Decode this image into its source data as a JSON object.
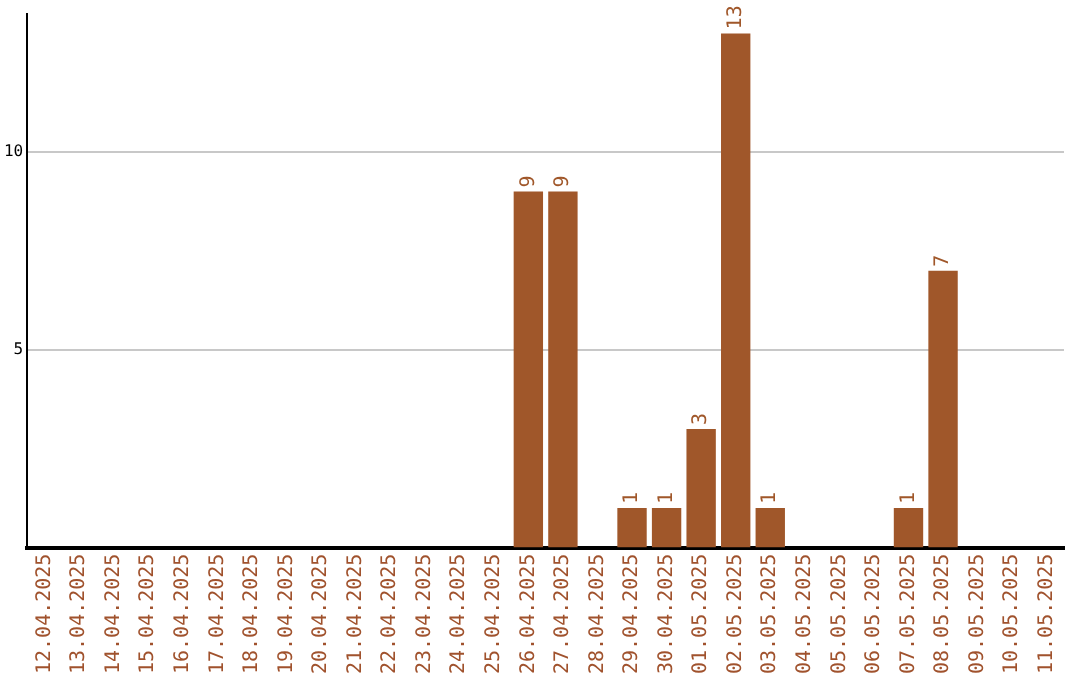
{
  "chart_data": {
    "type": "bar",
    "categories": [
      "12.04.2025",
      "13.04.2025",
      "14.04.2025",
      "15.04.2025",
      "16.04.2025",
      "17.04.2025",
      "18.04.2025",
      "19.04.2025",
      "20.04.2025",
      "21.04.2025",
      "22.04.2025",
      "23.04.2025",
      "24.04.2025",
      "25.04.2025",
      "26.04.2025",
      "27.04.2025",
      "28.04.2025",
      "29.04.2025",
      "30.04.2025",
      "01.05.2025",
      "02.05.2025",
      "03.05.2025",
      "04.05.2025",
      "05.05.2025",
      "06.05.2025",
      "07.05.2025",
      "08.05.2025",
      "09.05.2025",
      "10.05.2025",
      "11.05.2025"
    ],
    "values": [
      0,
      0,
      0,
      0,
      0,
      0,
      0,
      0,
      0,
      0,
      0,
      0,
      0,
      0,
      9,
      9,
      0,
      1,
      1,
      3,
      13,
      1,
      0,
      0,
      0,
      1,
      7,
      0,
      0,
      0
    ],
    "value_labels": [
      null,
      null,
      null,
      null,
      null,
      null,
      null,
      null,
      null,
      null,
      null,
      null,
      null,
      null,
      "9",
      "9",
      null,
      "1",
      "1",
      "3",
      "13",
      "1",
      null,
      null,
      null,
      "1",
      "7",
      null,
      null,
      null
    ],
    "color": "#a0572a",
    "ylim": [
      0,
      13.5
    ],
    "yticks": [
      5,
      10
    ],
    "grid": "y"
  }
}
